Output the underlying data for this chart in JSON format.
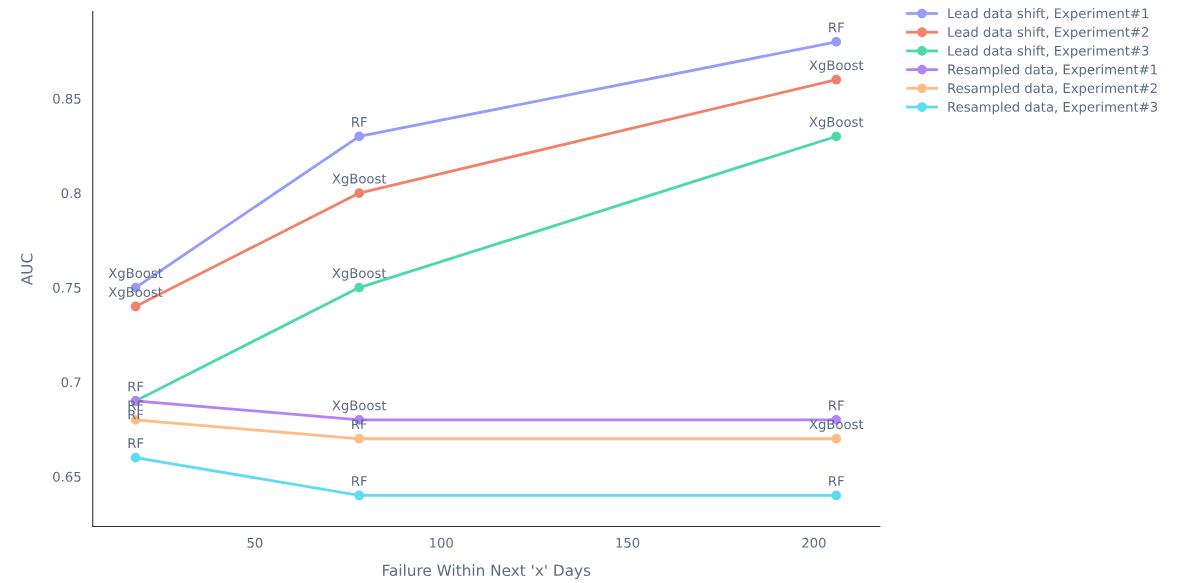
{
  "chart_data": {
    "type": "line",
    "xlabel": "Failure Within Next 'x' Days",
    "ylabel": "AUC",
    "x": [
      18,
      78,
      206
    ],
    "xlim": [
      6.5,
      217.7
    ],
    "xticks": [
      50,
      100,
      150,
      200
    ],
    "ylim": [
      0.6236,
      0.896
    ],
    "yticks": [
      0.65,
      0.7,
      0.75,
      0.8,
      0.85
    ],
    "grid": false,
    "legend": "top right",
    "marker": "circle",
    "line_style": "solid",
    "series": [
      {
        "name": "Lead data shift, Experiment#1",
        "color": "#959cf9",
        "values": [
          0.75,
          0.83,
          0.88
        ],
        "value_labels": [
          "XgBoost",
          "RF",
          "RF"
        ]
      },
      {
        "name": "Lead data shift, Experiment#2",
        "color": "#f0826c",
        "values": [
          0.74,
          0.8,
          0.86
        ],
        "value_labels": [
          "XgBoost",
          "XgBoost",
          "XgBoost"
        ]
      },
      {
        "name": "Lead data shift, Experiment#3",
        "color": "#4cd9a9",
        "values": [
          0.69,
          0.75,
          0.83
        ],
        "value_labels": [
          "RF",
          "XgBoost",
          "XgBoost"
        ]
      },
      {
        "name": "Resampled data, Experiment#1",
        "color": "#b681f7",
        "values": [
          0.69,
          0.68,
          0.68
        ],
        "value_labels": [
          "RF",
          "XgBoost",
          "RF"
        ]
      },
      {
        "name": "Resampled data, Experiment#2",
        "color": "#ffbc85",
        "values": [
          0.68,
          0.67,
          0.67
        ],
        "value_labels": [
          "RF",
          "RF",
          "XgBoost"
        ]
      },
      {
        "name": "Resampled data, Experiment#3",
        "color": "#5ddcf2",
        "values": [
          0.66,
          0.64,
          0.64
        ],
        "value_labels": [
          "RF",
          "RF",
          "RF"
        ]
      }
    ]
  }
}
